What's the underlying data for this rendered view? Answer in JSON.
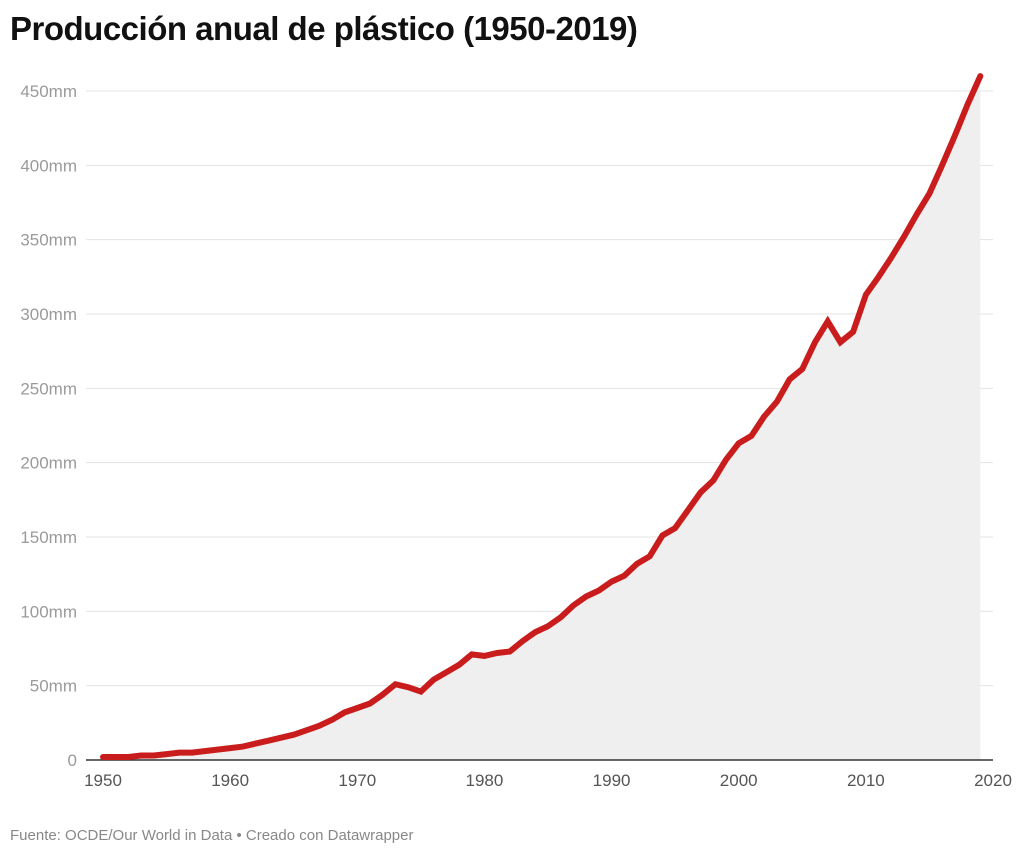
{
  "title": "Producción anual de plástico (1950-2019)",
  "footer": "Fuente: OCDE/Our World in Data • Creado con Datawrapper",
  "colors": {
    "line": "#c91d1d",
    "area": "#efefef",
    "grid": "#e3e3e3"
  },
  "chart_data": {
    "type": "area",
    "title": "Producción anual de plástico (1950-2019)",
    "xlabel": "",
    "ylabel": "",
    "xlim": [
      1950,
      2020
    ],
    "ylim": [
      0,
      450
    ],
    "grid": true,
    "x_ticks": [
      "1950",
      "1960",
      "1970",
      "1980",
      "1990",
      "2000",
      "2010",
      "2020"
    ],
    "y_ticks": [
      "0",
      "50mm",
      "100mm",
      "150mm",
      "200mm",
      "250mm",
      "300mm",
      "350mm",
      "400mm",
      "450mm"
    ],
    "series": [
      {
        "name": "Producción anual",
        "x": [
          1950,
          1951,
          1952,
          1953,
          1954,
          1955,
          1956,
          1957,
          1958,
          1959,
          1960,
          1961,
          1962,
          1963,
          1964,
          1965,
          1966,
          1967,
          1968,
          1969,
          1970,
          1971,
          1972,
          1973,
          1974,
          1975,
          1976,
          1977,
          1978,
          1979,
          1980,
          1981,
          1982,
          1983,
          1984,
          1985,
          1986,
          1987,
          1988,
          1989,
          1990,
          1991,
          1992,
          1993,
          1994,
          1995,
          1996,
          1997,
          1998,
          1999,
          2000,
          2001,
          2002,
          2003,
          2004,
          2005,
          2006,
          2007,
          2008,
          2009,
          2010,
          2011,
          2012,
          2013,
          2014,
          2015,
          2016,
          2017,
          2018,
          2019
        ],
        "values": [
          2,
          2,
          2,
          3,
          3,
          4,
          5,
          5,
          6,
          7,
          8,
          9,
          11,
          13,
          15,
          17,
          20,
          23,
          27,
          32,
          35,
          38,
          44,
          51,
          49,
          46,
          54,
          59,
          64,
          71,
          70,
          72,
          73,
          80,
          86,
          90,
          96,
          104,
          110,
          114,
          120,
          124,
          132,
          137,
          151,
          156,
          168,
          180,
          188,
          202,
          213,
          218,
          231,
          241,
          256,
          263,
          281,
          295,
          281,
          288,
          313,
          325,
          338,
          352,
          367,
          381,
          400,
          420,
          441,
          460
        ]
      }
    ]
  }
}
